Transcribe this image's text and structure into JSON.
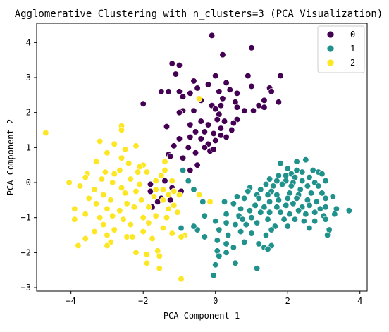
{
  "chart_data": {
    "type": "scatter",
    "title": "Agglomerative Clustering with n_clusters=3 (PCA Visualization)",
    "xlabel": "PCA Component 1",
    "ylabel": "PCA Component 2",
    "xlim": [
      -4.95,
      4.2
    ],
    "ylim": [
      -3.1,
      4.55
    ],
    "xticks": [
      -4,
      -2,
      0,
      2,
      4
    ],
    "xtick_labels": [
      "−4",
      "−2",
      "0",
      "2",
      "4"
    ],
    "yticks": [
      -3,
      -2,
      -1,
      0,
      1,
      2,
      3,
      4
    ],
    "ytick_labels": [
      "−3",
      "−2",
      "−1",
      "0",
      "1",
      "2",
      "3",
      "4"
    ],
    "grid": false,
    "legend_position": "top-right",
    "series": [
      {
        "name": "0",
        "color": "#440154",
        "points": [
          [
            -0.1,
            4.2
          ],
          [
            1.0,
            3.85
          ],
          [
            0.2,
            3.65
          ],
          [
            -1.2,
            3.4
          ],
          [
            -1.0,
            3.35
          ],
          [
            -1.1,
            3.1
          ],
          [
            0.0,
            3.05
          ],
          [
            0.9,
            3.05
          ],
          [
            1.8,
            3.05
          ],
          [
            -0.6,
            2.9
          ],
          [
            0.3,
            2.85
          ],
          [
            -0.2,
            2.8
          ],
          [
            1.0,
            2.75
          ],
          [
            -0.5,
            2.7
          ],
          [
            0.4,
            2.65
          ],
          [
            1.5,
            2.7
          ],
          [
            -1.5,
            2.6
          ],
          [
            -1.3,
            2.6
          ],
          [
            -1.0,
            2.6
          ],
          [
            -0.7,
            2.55
          ],
          [
            0.1,
            2.6
          ],
          [
            0.6,
            2.55
          ],
          [
            1.55,
            2.6
          ],
          [
            -0.9,
            2.45
          ],
          [
            0.2,
            2.4
          ],
          [
            -0.4,
            2.35
          ],
          [
            0.55,
            2.3
          ],
          [
            1.35,
            2.35
          ],
          [
            1.75,
            2.3
          ],
          [
            -2.0,
            2.25
          ],
          [
            -0.1,
            2.2
          ],
          [
            0.15,
            2.2
          ],
          [
            0.6,
            2.15
          ],
          [
            1.2,
            2.2
          ],
          [
            1.35,
            2.15
          ],
          [
            -0.9,
            2.05
          ],
          [
            -0.6,
            2.05
          ],
          [
            0.0,
            2.1
          ],
          [
            0.8,
            2.05
          ],
          [
            1.05,
            2.05
          ],
          [
            -1.0,
            2.0
          ],
          [
            0.1,
            1.95
          ],
          [
            0.6,
            1.8
          ],
          [
            -0.4,
            1.75
          ],
          [
            0.05,
            1.8
          ],
          [
            0.25,
            1.75
          ],
          [
            0.5,
            1.7
          ],
          [
            -0.7,
            1.65
          ],
          [
            -0.2,
            1.65
          ],
          [
            -1.35,
            1.6
          ],
          [
            0.15,
            1.55
          ],
          [
            0.45,
            1.5
          ],
          [
            -0.55,
            1.45
          ],
          [
            -0.3,
            1.45
          ],
          [
            -0.05,
            1.4
          ],
          [
            0.15,
            1.35
          ],
          [
            0.3,
            1.3
          ],
          [
            -1.0,
            1.25
          ],
          [
            -0.7,
            1.3
          ],
          [
            -0.4,
            1.25
          ],
          [
            0.0,
            1.2
          ],
          [
            -0.2,
            1.1
          ],
          [
            -1.15,
            1.05
          ],
          [
            -0.75,
            1.0
          ],
          [
            -0.3,
            1.0
          ],
          [
            -0.15,
            0.9
          ],
          [
            -0.05,
            0.95
          ],
          [
            -0.55,
            0.85
          ],
          [
            -1.3,
            0.8
          ],
          [
            -1.25,
            0.75
          ],
          [
            -0.9,
            0.7
          ],
          [
            -0.5,
            0.5
          ],
          [
            -0.7,
            0.35
          ],
          [
            -1.8,
            -0.05
          ],
          [
            -1.4,
            0.05
          ],
          [
            -1.2,
            -0.15
          ],
          [
            -1.8,
            -0.25
          ],
          [
            -1.5,
            -0.45
          ],
          [
            -0.95,
            -0.25
          ],
          [
            -1.25,
            -0.5
          ],
          [
            -1.75,
            -0.7
          ],
          [
            -1.6,
            -0.55
          ]
        ]
      },
      {
        "name": "1",
        "color": "#21918c",
        "points": [
          [
            2.5,
            0.65
          ],
          [
            2.25,
            0.6
          ],
          [
            1.8,
            0.55
          ],
          [
            2.0,
            0.4
          ],
          [
            2.25,
            0.35
          ],
          [
            2.4,
            0.3
          ],
          [
            2.1,
            0.25
          ],
          [
            2.7,
            0.35
          ],
          [
            2.85,
            0.3
          ],
          [
            1.75,
            0.2
          ],
          [
            1.95,
            0.2
          ],
          [
            2.2,
            0.15
          ],
          [
            2.6,
            0.15
          ],
          [
            2.95,
            0.25
          ],
          [
            1.5,
            0.1
          ],
          [
            1.7,
            0.05
          ],
          [
            1.95,
            0.05
          ],
          [
            2.15,
            0.0
          ],
          [
            2.4,
            0.05
          ],
          [
            2.75,
            0.0
          ],
          [
            3.05,
            0.05
          ],
          [
            1.4,
            -0.05
          ],
          [
            1.6,
            -0.1
          ],
          [
            1.85,
            -0.05
          ],
          [
            2.1,
            -0.1
          ],
          [
            2.55,
            -0.1
          ],
          [
            2.85,
            -0.1
          ],
          [
            0.95,
            -0.15
          ],
          [
            1.25,
            -0.2
          ],
          [
            1.55,
            -0.25
          ],
          [
            2.35,
            -0.2
          ],
          [
            0.9,
            -0.25
          ],
          [
            1.15,
            -0.35
          ],
          [
            1.45,
            -0.35
          ],
          [
            1.7,
            -0.35
          ],
          [
            2.05,
            -0.3
          ],
          [
            2.3,
            -0.35
          ],
          [
            2.65,
            -0.3
          ],
          [
            2.95,
            -0.3
          ],
          [
            3.25,
            -0.4
          ],
          [
            0.6,
            -0.4
          ],
          [
            0.8,
            -0.45
          ],
          [
            1.2,
            -0.45
          ],
          [
            1.5,
            -0.55
          ],
          [
            1.75,
            -0.5
          ],
          [
            2.0,
            -0.45
          ],
          [
            2.25,
            -0.45
          ],
          [
            2.55,
            -0.5
          ],
          [
            2.8,
            -0.55
          ],
          [
            3.05,
            -0.45
          ],
          [
            1.1,
            -0.65
          ],
          [
            1.35,
            -0.7
          ],
          [
            1.7,
            -0.7
          ],
          [
            1.95,
            -0.65
          ],
          [
            2.15,
            -0.6
          ],
          [
            2.4,
            -0.7
          ],
          [
            2.6,
            -0.65
          ],
          [
            2.9,
            -0.75
          ],
          [
            3.05,
            -0.7
          ],
          [
            3.35,
            -0.75
          ],
          [
            3.7,
            -0.8
          ],
          [
            0.25,
            -0.55
          ],
          [
            0.5,
            -0.6
          ],
          [
            0.7,
            -0.75
          ],
          [
            0.95,
            -0.8
          ],
          [
            1.25,
            -0.85
          ],
          [
            1.5,
            -0.85
          ],
          [
            1.8,
            -0.85
          ],
          [
            2.05,
            -0.9
          ],
          [
            2.3,
            -0.8
          ],
          [
            2.5,
            -0.9
          ],
          [
            2.75,
            -0.85
          ],
          [
            3.0,
            -0.95
          ],
          [
            3.3,
            -0.9
          ],
          [
            0.3,
            -0.9
          ],
          [
            0.65,
            -0.95
          ],
          [
            1.0,
            -1.0
          ],
          [
            1.45,
            -1.05
          ],
          [
            1.9,
            -1.05
          ],
          [
            2.2,
            -1.05
          ],
          [
            2.45,
            -1.1
          ],
          [
            2.75,
            -1.1
          ],
          [
            3.05,
            -1.05
          ],
          [
            0.0,
            -1.1
          ],
          [
            0.3,
            -1.15
          ],
          [
            0.55,
            -1.2
          ],
          [
            0.85,
            -1.2
          ],
          [
            1.15,
            -1.15
          ],
          [
            1.65,
            -1.25
          ],
          [
            2.0,
            -1.25
          ],
          [
            2.6,
            -1.3
          ],
          [
            3.15,
            -1.35
          ],
          [
            3.1,
            -1.5
          ],
          [
            -0.95,
            -1.3
          ],
          [
            -0.5,
            -1.35
          ],
          [
            0.1,
            -1.35
          ],
          [
            0.35,
            -1.5
          ],
          [
            0.7,
            -1.4
          ],
          [
            1.0,
            -1.45
          ],
          [
            1.4,
            -1.5
          ],
          [
            1.55,
            -1.35
          ],
          [
            -0.3,
            -1.55
          ],
          [
            0.05,
            -1.65
          ],
          [
            0.3,
            -1.75
          ],
          [
            0.8,
            -1.7
          ],
          [
            1.2,
            -1.75
          ],
          [
            1.55,
            -1.8
          ],
          [
            -0.9,
            0.35
          ],
          [
            -0.75,
            0.05
          ],
          [
            -0.6,
            -0.2
          ],
          [
            -0.35,
            -0.55
          ],
          [
            -0.3,
            -0.95
          ],
          [
            -0.6,
            -1.25
          ],
          [
            0.05,
            -1.95
          ],
          [
            0.5,
            -1.85
          ],
          [
            1.35,
            -1.85
          ],
          [
            1.45,
            -1.9
          ],
          [
            0.3,
            -2.0
          ],
          [
            0.1,
            -2.1
          ],
          [
            0.0,
            -2.35
          ],
          [
            -0.05,
            -2.65
          ],
          [
            0.55,
            -2.3
          ],
          [
            1.15,
            -2.45
          ],
          [
            0.75,
            -1.05
          ]
        ]
      },
      {
        "name": "2",
        "color": "#fde725",
        "points": [
          [
            -4.7,
            1.42
          ],
          [
            -2.6,
            1.62
          ],
          [
            -2.6,
            1.5
          ],
          [
            -3.2,
            1.18
          ],
          [
            -2.8,
            1.1
          ],
          [
            -2.2,
            1.05
          ],
          [
            -2.5,
            0.95
          ],
          [
            -3.0,
            0.85
          ],
          [
            -2.6,
            0.7
          ],
          [
            -3.3,
            0.6
          ],
          [
            -2.4,
            0.55
          ],
          [
            -1.4,
            0.6
          ],
          [
            -2.0,
            0.5
          ],
          [
            -2.1,
            0.45
          ],
          [
            -1.4,
            0.35
          ],
          [
            -2.65,
            0.35
          ],
          [
            -3.05,
            0.3
          ],
          [
            -3.55,
            0.25
          ],
          [
            -2.8,
            0.25
          ],
          [
            -1.9,
            0.3
          ],
          [
            -1.5,
            0.2
          ],
          [
            -3.6,
            0.15
          ],
          [
            -3.15,
            0.1
          ],
          [
            -2.35,
            0.1
          ],
          [
            -1.65,
            0.05
          ],
          [
            -4.05,
            0.0
          ],
          [
            -3.75,
            -0.1
          ],
          [
            -2.85,
            0.0
          ],
          [
            -2.1,
            -0.05
          ],
          [
            -1.2,
            0.05
          ],
          [
            -2.6,
            -0.15
          ],
          [
            -3.35,
            -0.2
          ],
          [
            -2.2,
            -0.25
          ],
          [
            -1.65,
            -0.2
          ],
          [
            -2.5,
            -0.3
          ],
          [
            -3.1,
            -0.35
          ],
          [
            -1.3,
            -0.35
          ],
          [
            -3.5,
            -0.45
          ],
          [
            -2.9,
            -0.5
          ],
          [
            -2.05,
            -0.5
          ],
          [
            -1.45,
            -0.5
          ],
          [
            -2.45,
            -0.6
          ],
          [
            -3.3,
            -0.6
          ],
          [
            -1.15,
            -0.65
          ],
          [
            -2.25,
            -0.7
          ],
          [
            -3.0,
            -0.75
          ],
          [
            -1.85,
            -0.7
          ],
          [
            -1.3,
            -0.75
          ],
          [
            -3.9,
            -0.75
          ],
          [
            -2.65,
            -0.8
          ],
          [
            -1.05,
            -0.85
          ],
          [
            -3.6,
            -0.9
          ],
          [
            -2.85,
            -0.95
          ],
          [
            -1.65,
            -0.95
          ],
          [
            -2.0,
            -1.0
          ],
          [
            -1.35,
            -1.0
          ],
          [
            -3.2,
            -1.0
          ],
          [
            -2.55,
            -1.05
          ],
          [
            -3.9,
            -1.05
          ],
          [
            -1.85,
            -1.15
          ],
          [
            -2.35,
            -1.2
          ],
          [
            -3.1,
            -1.2
          ],
          [
            -1.45,
            -1.3
          ],
          [
            -2.8,
            -1.35
          ],
          [
            -3.35,
            -1.4
          ],
          [
            -2.0,
            -1.4
          ],
          [
            -1.2,
            -1.45
          ],
          [
            -3.0,
            -1.5
          ],
          [
            -0.85,
            -1.5
          ],
          [
            -2.45,
            -1.55
          ],
          [
            -2.3,
            -1.55
          ],
          [
            -3.6,
            -1.6
          ],
          [
            -1.75,
            -1.6
          ],
          [
            -2.9,
            -1.7
          ],
          [
            -3.0,
            -1.8
          ],
          [
            -3.8,
            -1.8
          ],
          [
            -1.6,
            -1.95
          ],
          [
            -2.2,
            -2.0
          ],
          [
            -1.9,
            -2.05
          ],
          [
            -1.55,
            -2.1
          ],
          [
            -1.9,
            -2.3
          ],
          [
            -1.55,
            -2.45
          ],
          [
            -0.95,
            -2.75
          ],
          [
            -0.45,
            -0.35
          ],
          [
            -0.15,
            -0.55
          ],
          [
            -1.0,
            -0.35
          ],
          [
            -1.15,
            -0.25
          ],
          [
            -0.95,
            -1.55
          ],
          [
            -0.45,
            2.4
          ],
          [
            -1.45,
            -0.2
          ],
          [
            -1.7,
            -0.4
          ],
          [
            -2.15,
            0.3
          ]
        ]
      }
    ]
  }
}
